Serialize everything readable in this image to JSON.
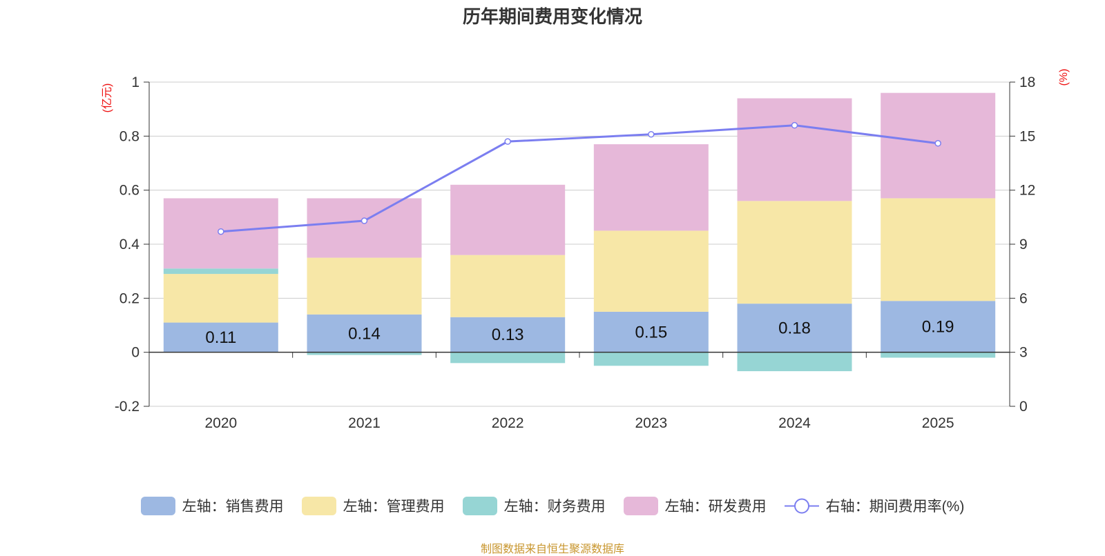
{
  "chart_data": {
    "type": "bar",
    "title": "历年期间费用变化情况",
    "categories": [
      "2020",
      "2021",
      "2022",
      "2023",
      "2024",
      "2025"
    ],
    "stacked": true,
    "series": [
      {
        "name": "左轴：销售费用",
        "axis": "left",
        "color": "#9db8e2",
        "values": [
          0.11,
          0.14,
          0.13,
          0.15,
          0.18,
          0.19
        ],
        "show_labels": true
      },
      {
        "name": "左轴：管理费用",
        "axis": "left",
        "color": "#f7e7a7",
        "values": [
          0.18,
          0.21,
          0.23,
          0.3,
          0.38,
          0.38
        ]
      },
      {
        "name": "左轴：财务费用",
        "axis": "left",
        "color": "#96d5d4",
        "values": [
          0.02,
          -0.01,
          -0.04,
          -0.05,
          -0.07,
          -0.02
        ]
      },
      {
        "name": "左轴：研发费用",
        "axis": "left",
        "color": "#e6b8d9",
        "values": [
          0.26,
          0.22,
          0.26,
          0.32,
          0.38,
          0.39
        ]
      }
    ],
    "line_series": {
      "name": "右轴：期间费用率(%)",
      "axis": "right",
      "color": "#7b7ef0",
      "values": [
        9.7,
        10.3,
        14.7,
        15.1,
        15.6,
        14.6
      ]
    },
    "y_left": {
      "label": "(亿元)",
      "min": -0.2,
      "max": 1,
      "ticks": [
        -0.2,
        0,
        0.2,
        0.4,
        0.6,
        0.8,
        1
      ]
    },
    "y_right": {
      "label": "(%)",
      "min": 0,
      "max": 18,
      "ticks": [
        0,
        3,
        6,
        9,
        12,
        15,
        18
      ]
    },
    "legend_position": "bottom"
  },
  "source": "制图数据来自恒生聚源数据库"
}
